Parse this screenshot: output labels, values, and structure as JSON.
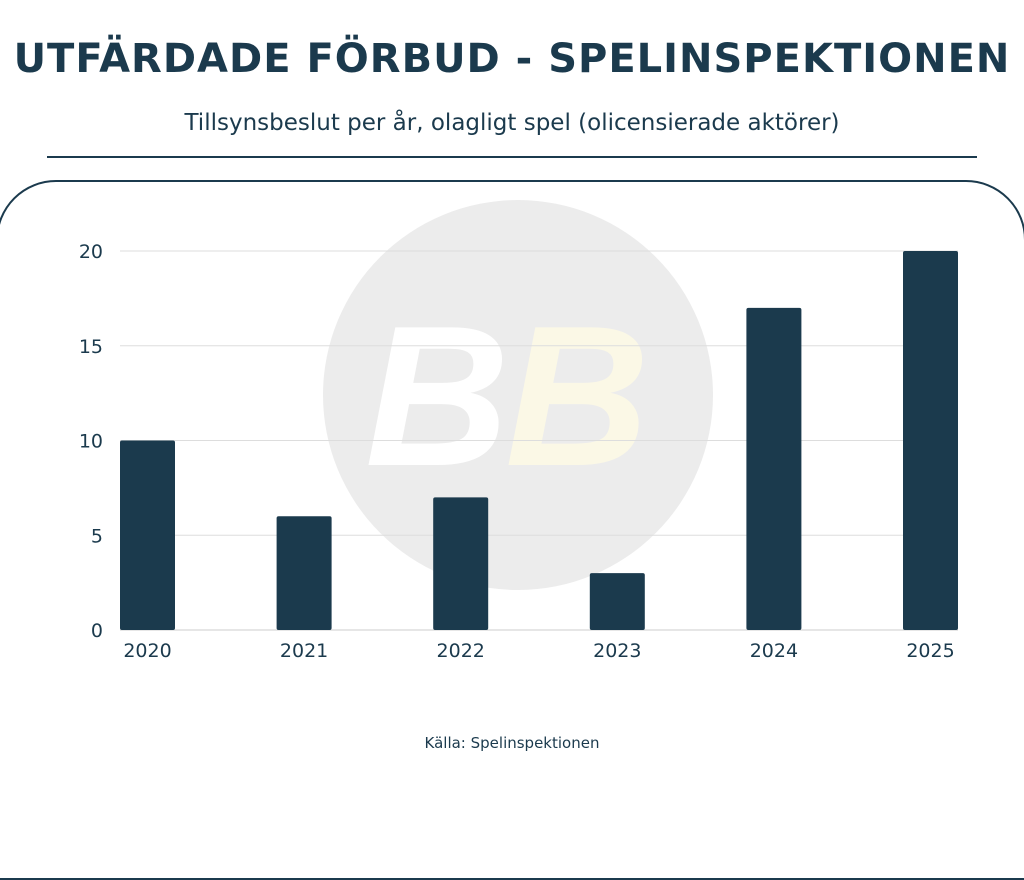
{
  "header": {
    "title": "UTFÄRDADE FÖRBUD - SPELINSPEKTIONEN",
    "subtitle": "Tillsynsbeslut per år, olagligt spel (olicensierade aktörer)"
  },
  "footer": {
    "source": "Källa: Spelinspektionen"
  },
  "watermark": {
    "text": "BB"
  },
  "colors": {
    "bar": "#1b3a4d",
    "grid": "#dddddd",
    "watermark_circle": "#ececec"
  },
  "chart_data": {
    "type": "bar",
    "title": "UTFÄRDADE FÖRBUD - SPELINSPEKTIONEN",
    "xlabel": "",
    "ylabel": "",
    "categories": [
      "2020",
      "2021",
      "2022",
      "2023",
      "2024",
      "2025"
    ],
    "values": [
      10,
      6,
      7,
      3,
      17,
      20
    ],
    "ylim": [
      0,
      20
    ],
    "yticks": [
      "0",
      "5",
      "10",
      "15",
      "20"
    ],
    "grid": true
  }
}
